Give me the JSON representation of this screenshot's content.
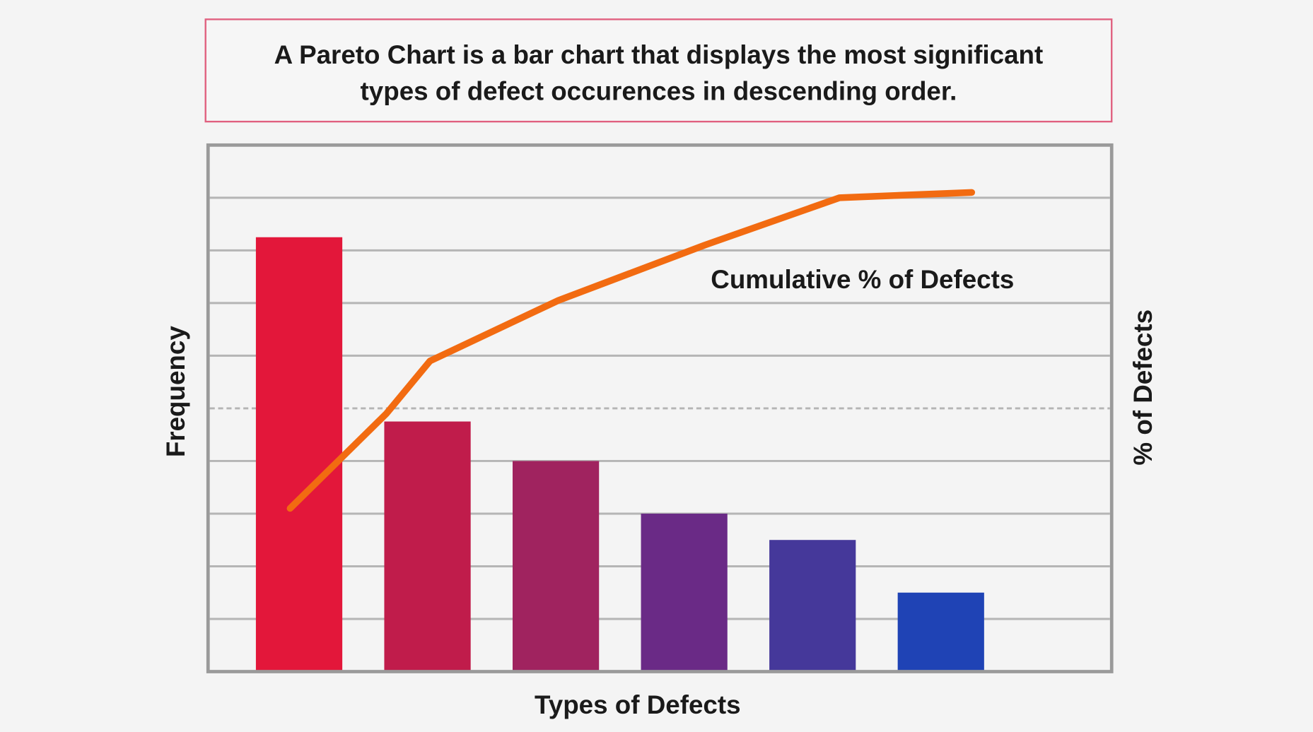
{
  "title_box": {
    "line1": "A Pareto Chart is a bar chart that displays the most significant",
    "line2": "types of defect occurences in descending order.",
    "border_color": "#e0607f"
  },
  "chart_data": {
    "type": "bar",
    "title": "",
    "xlabel": "Types of Defects",
    "ylabel": "Frequency",
    "ylabel_right": "% of Defects",
    "categories": [
      "",
      "",
      "",
      "",
      "",
      ""
    ],
    "values": [
      8.25,
      4.75,
      4.0,
      3.0,
      2.5,
      1.5
    ],
    "ylim": [
      0,
      10
    ],
    "grid": true,
    "bar_colors": [
      "#e3173a",
      "#c01c4b",
      "#a0235f",
      "#6a2a86",
      "#45389a",
      "#1f43b5"
    ],
    "line_series": {
      "name": "Cumulative % of Defects",
      "color": "#f26b11",
      "y_axis": "right",
      "ylim": [
        0,
        100
      ],
      "points": [
        {
          "x": -0.07,
          "y": 31
        },
        {
          "x": 0.68,
          "y": 49
        },
        {
          "x": 1.02,
          "y": 59
        },
        {
          "x": 2.02,
          "y": 70.5
        },
        {
          "x": 3.16,
          "y": 81
        },
        {
          "x": 4.21,
          "y": 90
        },
        {
          "x": 5.24,
          "y": 91
        }
      ]
    }
  }
}
